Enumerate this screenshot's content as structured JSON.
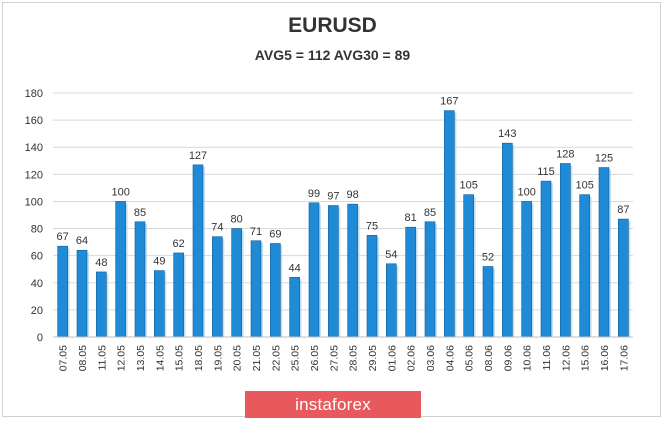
{
  "colors": {
    "bar": "#1f8ad6",
    "bar_dark": "#0d5e9c",
    "grid": "#d9d9d9",
    "text": "#333333",
    "watermark_bg": "#e8595e"
  },
  "watermark": {
    "text": "instaforex"
  },
  "chart_data": {
    "type": "bar",
    "title": "EURUSD",
    "subtitle": "AVG5 = 112 AVG30 = 89",
    "categories": [
      "07.05",
      "08.05",
      "11.05",
      "12.05",
      "13.05",
      "14.05",
      "15.05",
      "18.05",
      "19.05",
      "20.05",
      "21.05",
      "22.05",
      "25.05",
      "26.05",
      "27.05",
      "28.05",
      "29.05",
      "01.06",
      "02.06",
      "03.06",
      "04.06",
      "05.06",
      "08.06",
      "09.06",
      "10.06",
      "11.06",
      "12.06",
      "15.06",
      "16.06",
      "17.06"
    ],
    "values": [
      67,
      64,
      48,
      100,
      85,
      49,
      62,
      127,
      74,
      80,
      71,
      69,
      44,
      99,
      97,
      98,
      75,
      54,
      81,
      85,
      167,
      105,
      52,
      143,
      100,
      115,
      128,
      105,
      125,
      87
    ],
    "ylim": [
      0,
      180
    ],
    "yticks": [
      0,
      20,
      40,
      60,
      80,
      100,
      120,
      140,
      160,
      180
    ],
    "grid": true,
    "data_labels": true
  }
}
